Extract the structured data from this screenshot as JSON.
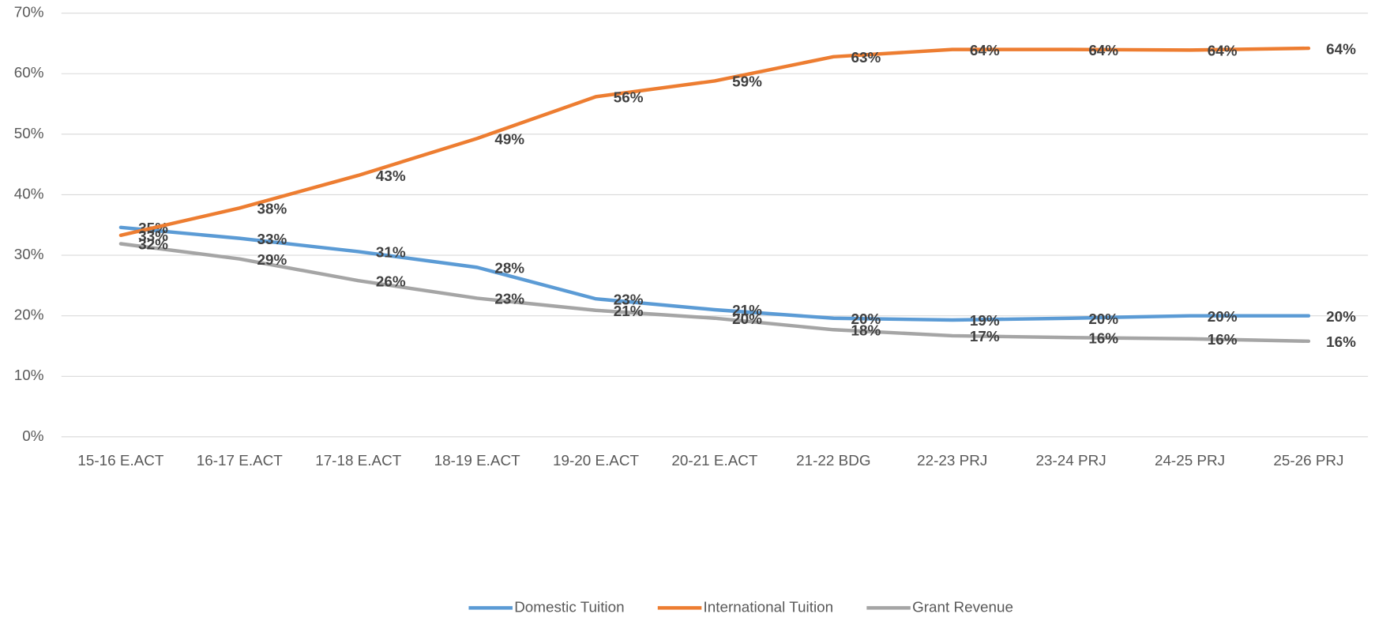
{
  "chart_data": {
    "type": "line",
    "categories": [
      "15-16 E.ACT",
      "16-17 E.ACT",
      "17-18 E.ACT",
      "18-19 E.ACT",
      "19-20 E.ACT",
      "20-21 E.ACT",
      "21-22 BDG",
      "22-23 PRJ",
      "23-24 PRJ",
      "24-25 PRJ",
      "25-26 PRJ"
    ],
    "series": [
      {
        "name": "Domestic Tuition",
        "color": "#5b9bd5",
        "values": [
          34.6,
          32.8,
          30.6,
          28.0,
          22.8,
          21.0,
          19.6,
          19.3,
          19.6,
          20.0,
          20.0
        ],
        "value_labels": [
          "35%",
          "33%",
          "31%",
          "28%",
          "23%",
          "21%",
          "20%",
          "19%",
          "20%",
          "20%",
          "20%"
        ]
      },
      {
        "name": "International Tuition",
        "color": "#ed7d31",
        "values": [
          33.3,
          37.8,
          43.2,
          49.3,
          56.2,
          58.8,
          62.8,
          64.0,
          64.0,
          63.9,
          64.2
        ],
        "value_labels": [
          "33%",
          "38%",
          "43%",
          "49%",
          "56%",
          "59%",
          "63%",
          "64%",
          "64%",
          "64%",
          "64%"
        ]
      },
      {
        "name": "Grant Revenue",
        "color": "#a5a5a5",
        "values": [
          31.9,
          29.4,
          25.8,
          22.9,
          20.9,
          19.6,
          17.7,
          16.7,
          16.4,
          16.2,
          15.8
        ],
        "value_labels": [
          "32%",
          "29%",
          "26%",
          "23%",
          "21%",
          "20%",
          "18%",
          "17%",
          "16%",
          "16%",
          "16%"
        ]
      }
    ],
    "ylim": [
      0,
      70
    ],
    "yticks": [
      {
        "value": 0,
        "label": "0%"
      },
      {
        "value": 10,
        "label": "10%"
      },
      {
        "value": 20,
        "label": "20%"
      },
      {
        "value": 30,
        "label": "30%"
      },
      {
        "value": 40,
        "label": "40%"
      },
      {
        "value": 50,
        "label": "50%"
      },
      {
        "value": 60,
        "label": "60%"
      },
      {
        "value": 70,
        "label": "70%"
      }
    ],
    "grid": true,
    "legend": "bottom"
  }
}
